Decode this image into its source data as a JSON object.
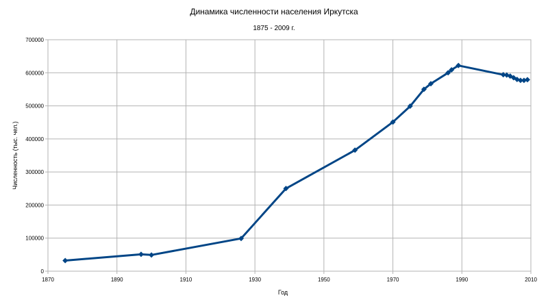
{
  "chart_data": {
    "type": "line",
    "title": "Динамика численности населения Иркутска",
    "subtitle": "1875 - 2009 г.",
    "xlabel": "Год",
    "ylabel": "Численность (тыс. чел.)",
    "xlim": [
      1870,
      2010
    ],
    "ylim": [
      0,
      700000
    ],
    "x_ticks": [
      1870,
      1890,
      1910,
      1930,
      1950,
      1970,
      1990,
      2010
    ],
    "y_ticks": [
      0,
      100000,
      200000,
      300000,
      400000,
      500000,
      600000,
      700000
    ],
    "grid": true,
    "legend": "none",
    "series_color": "#004586",
    "series": [
      {
        "x": [
          1875,
          1897,
          1900,
          1926,
          1939,
          1959,
          1970,
          1975,
          1979,
          1981,
          1986,
          1987,
          1989,
          2002,
          2003,
          2004,
          2005,
          2006,
          2007,
          2008,
          2009
        ],
        "y": [
          32000,
          51000,
          49000,
          99000,
          250000,
          366000,
          451000,
          499000,
          550000,
          567000,
          600000,
          609000,
          622000,
          594000,
          593000,
          590000,
          585000,
          580000,
          577000,
          577000,
          579000
        ]
      }
    ]
  }
}
